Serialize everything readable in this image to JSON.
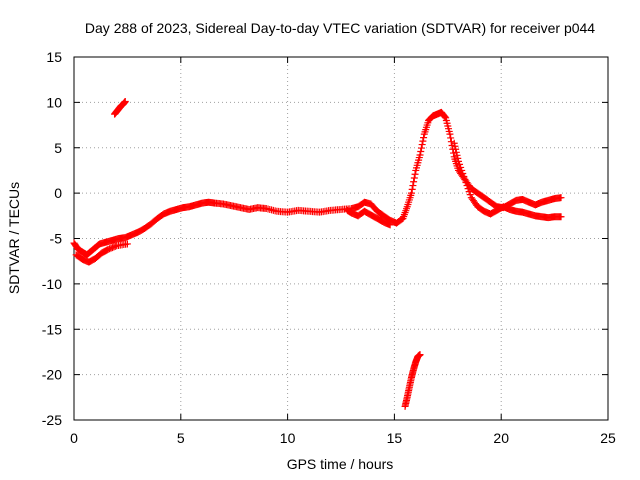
{
  "chart_data": {
    "type": "scatter",
    "title": "Day 288 of 2023, Sidereal Day-to-day VTEC variation (SDTVAR) for receiver p044",
    "xlabel": "GPS time / hours",
    "ylabel": "SDTVAR / TECUs",
    "xlim": [
      0,
      25
    ],
    "ylim": [
      -25,
      15
    ],
    "xticks": [
      0,
      5,
      10,
      15,
      20,
      25
    ],
    "yticks": [
      15,
      10,
      5,
      0,
      -5,
      -10,
      -15,
      -20,
      -25
    ],
    "xtick_labels": [
      "0",
      "5",
      "10",
      "15",
      "20",
      "25"
    ],
    "ytick_labels": [
      "15",
      "10",
      "5",
      "0",
      "-5",
      "-10",
      "-15",
      "-20",
      "-25"
    ],
    "grid": true,
    "marker": "+",
    "color": "#ff0000",
    "series": [
      {
        "name": "p044",
        "segments": [
          {
            "x": [
              0.0,
              0.2,
              0.4,
              0.6,
              0.8,
              1.0,
              1.2,
              1.5,
              1.8,
              2.1,
              2.4,
              2.7,
              3.0,
              3.3,
              3.6,
              3.9,
              4.2,
              4.5,
              4.8,
              5.1,
              5.4,
              5.7,
              6.0,
              6.3,
              6.6,
              7.0,
              7.4,
              7.8,
              8.2,
              8.6,
              9.0,
              9.5,
              10.0,
              10.5,
              11.0,
              11.5,
              12.0,
              12.5,
              13.0,
              13.3,
              13.6,
              13.9,
              14.2,
              14.5,
              14.8,
              15.1,
              15.4,
              15.6,
              15.8,
              16.0,
              16.2,
              16.4,
              16.6,
              16.8,
              17.0,
              17.2,
              17.4,
              17.6,
              17.8,
              18.0,
              18.3,
              18.6,
              18.9,
              19.2,
              19.5,
              19.8,
              20.1,
              20.4,
              20.7,
              21.0,
              21.3,
              21.6,
              21.9,
              22.2,
              22.5,
              22.8
            ],
            "y": [
              -5.5,
              -6.2,
              -6.5,
              -6.8,
              -6.4,
              -6.0,
              -5.6,
              -5.4,
              -5.2,
              -5.0,
              -4.9,
              -4.6,
              -4.3,
              -3.9,
              -3.4,
              -2.8,
              -2.3,
              -2.0,
              -1.8,
              -1.6,
              -1.5,
              -1.3,
              -1.1,
              -1.0,
              -1.1,
              -1.2,
              -1.4,
              -1.6,
              -1.8,
              -1.6,
              -1.7,
              -2.0,
              -2.1,
              -1.9,
              -2.0,
              -2.1,
              -1.9,
              -1.8,
              -1.7,
              -1.5,
              -1.0,
              -1.2,
              -2.0,
              -2.5,
              -3.0,
              -3.3,
              -2.8,
              -1.5,
              0.0,
              2.5,
              4.2,
              6.5,
              8.0,
              8.5,
              8.7,
              8.9,
              8.3,
              6.5,
              4.0,
              2.5,
              1.5,
              0.5,
              0.0,
              -0.5,
              -1.0,
              -1.5,
              -1.6,
              -1.2,
              -0.8,
              -0.7,
              -1.0,
              -1.3,
              -1.0,
              -0.8,
              -0.6,
              -0.5
            ]
          },
          {
            "x": [
              0.1,
              0.4,
              0.7,
              1.0,
              1.3,
              1.6,
              2.0,
              2.5
            ],
            "y": [
              -6.8,
              -7.3,
              -7.6,
              -7.2,
              -6.6,
              -6.2,
              -5.8,
              -5.6
            ]
          },
          {
            "x": [
              12.8,
              13.0,
              13.3,
              13.6,
              13.9,
              14.2,
              14.5,
              14.8
            ],
            "y": [
              -1.9,
              -2.2,
              -2.5,
              -2.0,
              -2.4,
              -2.8,
              -3.2,
              -3.5
            ]
          },
          {
            "x": [
              17.8,
              18.0,
              18.3,
              18.6,
              18.9,
              19.2,
              19.5,
              19.8,
              20.1,
              20.4,
              20.7,
              21.0,
              21.3,
              21.6,
              21.9,
              22.2,
              22.5,
              22.8
            ],
            "y": [
              5.5,
              3.5,
              1.5,
              -0.5,
              -1.5,
              -2.0,
              -2.3,
              -1.9,
              -1.5,
              -1.8,
              -2.0,
              -2.1,
              -2.3,
              -2.5,
              -2.6,
              -2.7,
              -2.6,
              -2.6
            ]
          },
          {
            "x": [
              1.9,
              2.0,
              2.1,
              2.2,
              2.3,
              2.4
            ],
            "y": [
              8.7,
              9.0,
              9.3,
              9.6,
              9.8,
              10.1
            ]
          },
          {
            "x": [
              15.5,
              15.6,
              15.7,
              15.8,
              15.9,
              16.0,
              16.1,
              16.2
            ],
            "y": [
              -23.5,
              -22.5,
              -21.4,
              -20.3,
              -19.4,
              -18.6,
              -18.0,
              -17.8
            ]
          }
        ]
      }
    ]
  }
}
